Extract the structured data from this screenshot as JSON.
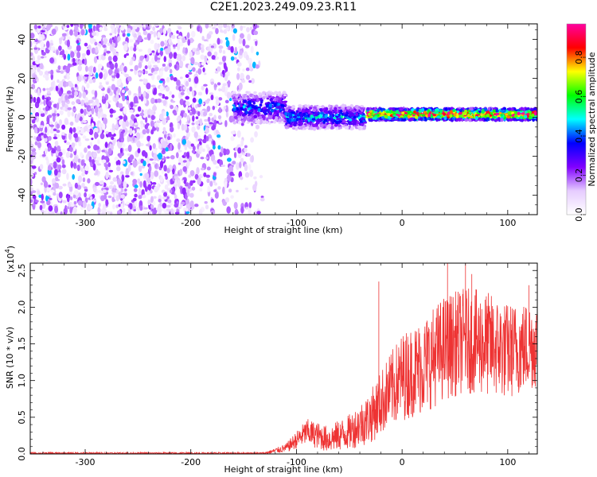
{
  "title": "C2E1.2023.249.09.23.R11",
  "chart_data": [
    {
      "type": "heatmap",
      "title": "C2E1.2023.249.09.23.R11",
      "xlabel": "Height of straight line (km)",
      "ylabel": "Frequency (Hz)",
      "xlim": [
        -352,
        128
      ],
      "ylim": [
        -50,
        48
      ],
      "x_ticks": [
        -300,
        -200,
        -100,
        0,
        100
      ],
      "y_ticks": [
        -40,
        -20,
        0,
        20,
        40
      ],
      "colorbar": {
        "label": "Normalized spectral amplitude",
        "range": [
          0,
          0.97
        ],
        "ticks": [
          0.0,
          0.2,
          0.4,
          0.6,
          0.8
        ],
        "colormap": [
          "#ffffff",
          "#e6ccff",
          "#8000ff",
          "#0000ff",
          "#00ffff",
          "#00ff00",
          "#ffff00",
          "#ff0000",
          "#ff00a0"
        ]
      },
      "bands": [
        {
          "x_range": [
            -352,
            -130
          ],
          "description_level": "scattered",
          "freq_range": [
            -50,
            48
          ],
          "amplitude": 0.15
        },
        {
          "x_range": [
            -160,
            -110
          ],
          "freq_center": 5,
          "freq_halfwidth": 8,
          "amplitude": 0.35
        },
        {
          "x_range": [
            -110,
            -35
          ],
          "freq_center": 0,
          "freq_halfwidth": 6,
          "amplitude": 0.4
        },
        {
          "x_range": [
            -33,
            128
          ],
          "freq_center": 1.5,
          "freq_halfwidth": 3,
          "amplitude": 0.85
        }
      ]
    },
    {
      "type": "line",
      "xlabel": "Height of straight line (km)",
      "ylabel": "SNR (10 * v/v)",
      "y_multiplier": "(x10",
      "y_multiplier_exp": "4",
      "y_multiplier_close": ")",
      "xlim": [
        -352,
        128
      ],
      "ylim": [
        0,
        2.6
      ],
      "x_ticks": [
        -300,
        -200,
        -100,
        0,
        100
      ],
      "y_ticks": [
        0.0,
        0.5,
        1.0,
        1.5,
        2.0,
        2.5
      ],
      "color": "#ee3333",
      "envelope": [
        {
          "x": -352,
          "mean": 0.01,
          "spread": 0.01
        },
        {
          "x": -130,
          "mean": 0.01,
          "spread": 0.01
        },
        {
          "x": -110,
          "mean": 0.08,
          "spread": 0.05
        },
        {
          "x": -90,
          "mean": 0.3,
          "spread": 0.15
        },
        {
          "x": -70,
          "mean": 0.2,
          "spread": 0.15
        },
        {
          "x": -50,
          "mean": 0.3,
          "spread": 0.2
        },
        {
          "x": -30,
          "mean": 0.5,
          "spread": 0.3
        },
        {
          "x": -15,
          "mean": 0.8,
          "spread": 0.4
        },
        {
          "x": 0,
          "mean": 1.05,
          "spread": 0.5
        },
        {
          "x": 20,
          "mean": 1.2,
          "spread": 0.55
        },
        {
          "x": 40,
          "mean": 1.45,
          "spread": 0.6
        },
        {
          "x": 60,
          "mean": 1.55,
          "spread": 0.6
        },
        {
          "x": 80,
          "mean": 1.5,
          "spread": 0.6
        },
        {
          "x": 100,
          "mean": 1.4,
          "spread": 0.55
        },
        {
          "x": 128,
          "mean": 1.5,
          "spread": 0.5
        }
      ],
      "spikes": [
        {
          "x": -22,
          "y": 2.35
        },
        {
          "x": 43,
          "y": 2.6
        },
        {
          "x": 60,
          "y": 2.6
        },
        {
          "x": 66,
          "y": 2.45
        },
        {
          "x": 120,
          "y": 2.3
        }
      ]
    }
  ]
}
